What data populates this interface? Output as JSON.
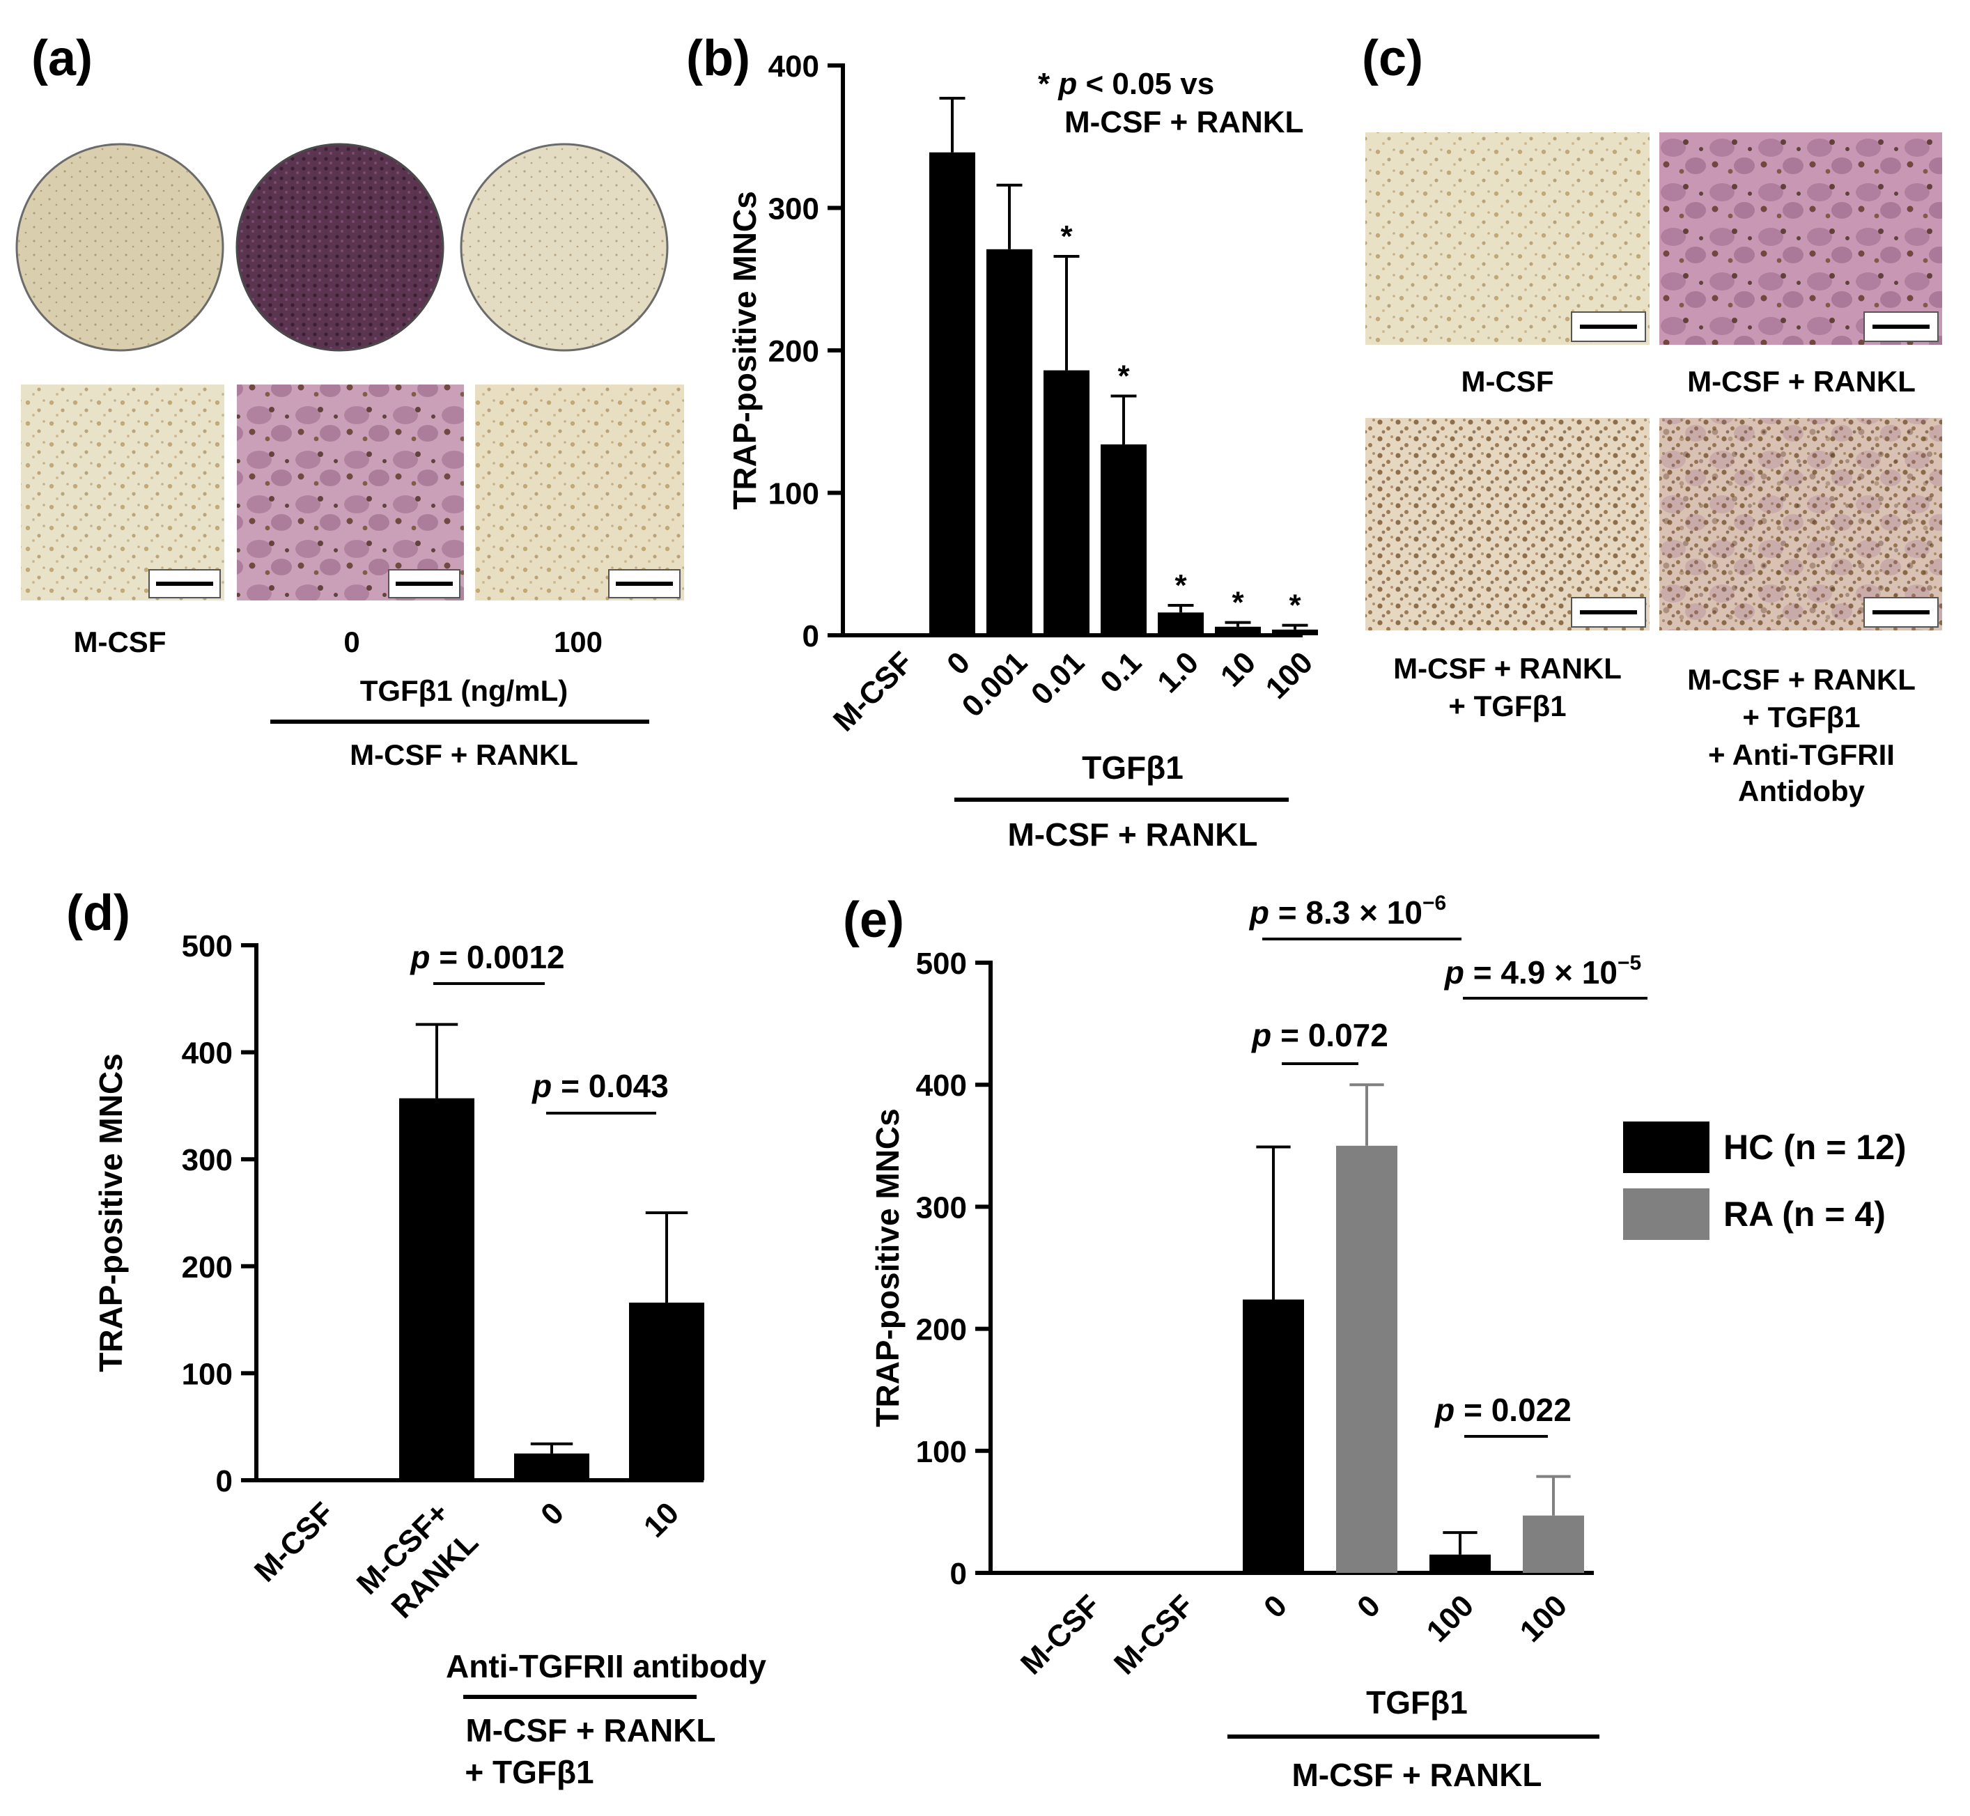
{
  "panels": {
    "a": {
      "label": "(a)",
      "captions": [
        "M-CSF",
        "0",
        "100"
      ],
      "group_label": "TGFβ1 (ng/mL)",
      "bracket_label": "M-CSF + RANKL",
      "well_colors": [
        "#d9cfae",
        "#5b3550",
        "#e3dcc3"
      ],
      "micro_colors": [
        "#e8e2c8",
        "#c9a0b8",
        "#e8dfc2"
      ]
    },
    "c": {
      "label": "(c)",
      "captions": [
        [
          "M-CSF"
        ],
        [
          "M-CSF + RANKL"
        ],
        [
          "M-CSF + RANKL",
          "+ TGFβ1"
        ],
        [
          "M-CSF + RANKL",
          "+ TGFβ1",
          "+ Anti-TGFRII",
          "Antidoby"
        ]
      ],
      "micro_colors": [
        "#e9e1c6",
        "#c797b3",
        "#e6d7c0",
        "#d9c2b4"
      ]
    }
  },
  "chart_data": [
    {
      "panel": "(b)",
      "type": "bar",
      "categories": [
        "M-CSF",
        "0",
        "0.001",
        "0.01",
        "0.1",
        "1.0",
        "10",
        "100"
      ],
      "values": [
        0,
        339,
        271,
        186,
        134,
        16,
        6,
        4
      ],
      "errors": [
        0,
        38,
        45,
        80,
        34,
        5,
        3,
        3
      ],
      "significant": [
        false,
        false,
        false,
        true,
        true,
        true,
        true,
        true
      ],
      "ylabel": "TRAP-positive MNCs",
      "ylim": [
        0,
        400
      ],
      "yticks": [
        0,
        100,
        200,
        300,
        400
      ],
      "sig_marker": "*",
      "note_line1": "p < 0.05 vs",
      "note_line2": "M-CSF + RANKL",
      "group_label": "TGFβ1",
      "bracket_label": "M-CSF + RANKL",
      "bar_color": "#000000"
    },
    {
      "panel": "(d)",
      "type": "bar",
      "categories": [
        "M-CSF",
        "M-CSF+ RANKL",
        "0",
        "10"
      ],
      "values": [
        0,
        357,
        25,
        166
      ],
      "errors": [
        0,
        69,
        9,
        84
      ],
      "ylabel": "TRAP-positive MNCs",
      "ylim": [
        0,
        500
      ],
      "yticks": [
        0,
        100,
        200,
        300,
        400,
        500
      ],
      "comparisons": [
        {
          "between": [
            1,
            2
          ],
          "label": "= 0.0012"
        },
        {
          "between": [
            2,
            3
          ],
          "label": "= 0.043"
        }
      ],
      "group_label": "Anti-TGFRII antibody",
      "bracket_label_1": "M-CSF + RANKL",
      "bracket_label_2": "+ TGFβ1",
      "bar_color": "#000000"
    },
    {
      "panel": "(e)",
      "type": "bar",
      "categories": [
        "M-CSF",
        "M-CSF",
        "0",
        "0",
        "100",
        "100"
      ],
      "series_index": [
        0,
        1,
        0,
        1,
        0,
        1
      ],
      "values": [
        0,
        0,
        224,
        350,
        15,
        47
      ],
      "errors": [
        0,
        0,
        125,
        50,
        18,
        32
      ],
      "series": [
        {
          "name": "HC (n = 12)",
          "color": "#000000"
        },
        {
          "name": "RA (n = 4)",
          "color": "#808080"
        }
      ],
      "ylabel": "TRAP-positive MNCs",
      "ylim": [
        0,
        500
      ],
      "yticks": [
        0,
        100,
        200,
        300,
        400,
        500
      ],
      "comparisons": [
        {
          "between": [
            2,
            4
          ],
          "label": "= 8.3 × 10",
          "exp": "−6"
        },
        {
          "between": [
            4,
            5
          ],
          "label": "= 4.9 × 10",
          "exp": "−5"
        },
        {
          "between": [
            2,
            3
          ],
          "label": "= 0.072"
        },
        {
          "between": [
            4,
            5
          ],
          "label": "= 0.022"
        }
      ],
      "group_label": "TGFβ1",
      "bracket_label": "M-CSF + RANKL",
      "legend_position": "right"
    }
  ]
}
